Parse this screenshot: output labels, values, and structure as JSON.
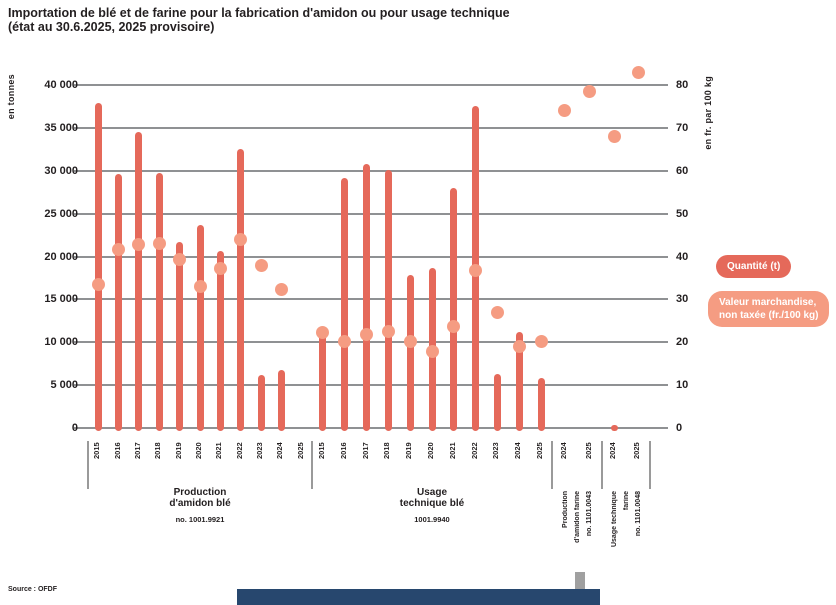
{
  "title": {
    "line1": "Importation de blé et de farine pour la fabrication d'amidon ou pour usage technique",
    "line2": "(état au 30.6.2025, 2025 provisoire)"
  },
  "source": "Source : OFDF",
  "legend": {
    "quantity_label": "Quantité (t)",
    "value_line1": "Valeur marchandise,",
    "value_line2": "non taxée (fr./100 kg)"
  },
  "colors": {
    "bar": "#e5695a",
    "dot": "#f59c82",
    "grid": "#8f9193",
    "text": "#231f20",
    "strip": "#27476e"
  },
  "chart_data": {
    "type": "bar",
    "overlay": "scatter",
    "legend_position": "right",
    "grid": "horizontal",
    "left_axis": {
      "label": "en tonnes",
      "range": [
        0,
        40000
      ],
      "ticks": [
        "40 000",
        "35 000",
        "30 000",
        "25 000",
        "20 000",
        "15 000",
        "10 000",
        "5 000",
        "0"
      ]
    },
    "right_axis": {
      "label": "en fr. par 100 kg",
      "range": [
        0,
        80
      ],
      "ticks": [
        "80",
        "70",
        "60",
        "50",
        "40",
        "30",
        "20",
        "10",
        "0"
      ]
    },
    "series": [
      {
        "name": "Quantité (t)",
        "axis": "left",
        "style": "bar"
      },
      {
        "name": "Valeur marchandise, non taxée (fr./100 kg)",
        "axis": "right",
        "style": "dot"
      }
    ],
    "groups": [
      {
        "label_lines": [
          "Production",
          "d'amidon blé"
        ],
        "sublabel": "no. 1001.9921",
        "label_rotated": false,
        "years": [
          "2015",
          "2016",
          "2017",
          "2018",
          "2019",
          "2020",
          "2021",
          "2022",
          "2023",
          "2024",
          "2025"
        ],
        "quantity_t": [
          37900,
          29600,
          34500,
          29700,
          21700,
          23700,
          20600,
          32500,
          6200,
          6800,
          null
        ],
        "value_fr_100kg": [
          33.4,
          41.7,
          42.8,
          43.1,
          39.3,
          33.1,
          37.2,
          44.0,
          37.8,
          32.3,
          null
        ]
      },
      {
        "label_lines": [
          "Usage",
          "technique blé"
        ],
        "sublabel": "1001.9940",
        "label_rotated": false,
        "years": [
          "2015",
          "2016",
          "2017",
          "2018",
          "2019",
          "2020",
          "2021",
          "2022",
          "2023",
          "2024",
          "2025"
        ],
        "quantity_t": [
          11800,
          29200,
          30800,
          30100,
          17900,
          18700,
          28000,
          37500,
          6300,
          11200,
          5800
        ],
        "value_fr_100kg": [
          22.2,
          20.1,
          21.7,
          22.5,
          20.1,
          17.8,
          23.6,
          36.7,
          26.9,
          19.0,
          20.1
        ]
      },
      {
        "label_lines": [
          "Production",
          "d'amidon farine",
          "no. 1101.0043"
        ],
        "sublabel": "",
        "label_rotated": true,
        "years": [
          "2024",
          "2025"
        ],
        "quantity_t": [
          null,
          null
        ],
        "value_fr_100kg": [
          74.0,
          78.5
        ]
      },
      {
        "label_lines": [
          "Usage technique",
          "farine",
          "no. 1101.0048"
        ],
        "sublabel": "",
        "label_rotated": true,
        "years": [
          "2024",
          "2025"
        ],
        "quantity_t": [
          400,
          null
        ],
        "value_fr_100kg": [
          68.0,
          83.0
        ]
      }
    ]
  }
}
